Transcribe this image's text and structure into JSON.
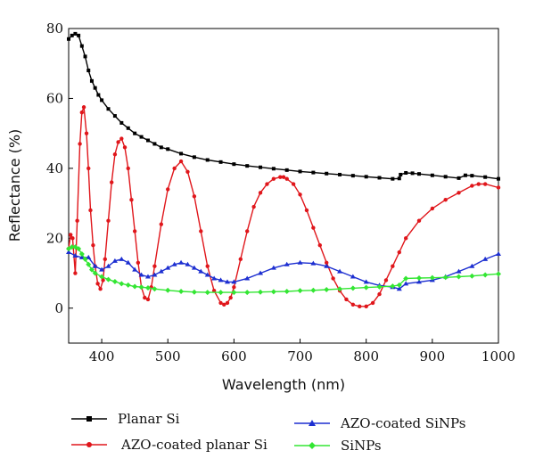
{
  "chart_data": {
    "type": "line",
    "title": "",
    "xlabel": "Wavelength (nm)",
    "ylabel": "Reflectance (%)",
    "xlim": [
      350,
      1000
    ],
    "ylim": [
      -10,
      80
    ],
    "xticks": [
      400,
      500,
      600,
      700,
      800,
      900,
      1000
    ],
    "yticks": [
      0,
      20,
      40,
      60,
      80
    ],
    "xtick_labels": [
      "400",
      "500",
      "600",
      "700",
      "800",
      "900",
      "1000"
    ],
    "ytick_labels": [
      "0",
      "20",
      "40",
      "60",
      "80"
    ],
    "grid": false,
    "legend_position": "bottom",
    "series": [
      {
        "name": "Planar Si",
        "color": "#000000",
        "marker": "square",
        "x": [
          350,
          355,
          360,
          365,
          370,
          375,
          380,
          385,
          390,
          395,
          400,
          410,
          420,
          430,
          440,
          450,
          460,
          470,
          480,
          490,
          500,
          520,
          540,
          560,
          580,
          600,
          620,
          640,
          660,
          680,
          700,
          720,
          740,
          760,
          780,
          800,
          820,
          840,
          850,
          852,
          860,
          870,
          880,
          900,
          920,
          940,
          950,
          960,
          980,
          1000
        ],
        "y": [
          77,
          78,
          78.5,
          78,
          75,
          72,
          68,
          65,
          63,
          61,
          59.5,
          57,
          55,
          53,
          51.5,
          50,
          49,
          48,
          47,
          46,
          45.5,
          44.2,
          43.2,
          42.4,
          41.8,
          41.2,
          40.7,
          40.3,
          39.9,
          39.5,
          39.1,
          38.8,
          38.5,
          38.2,
          37.9,
          37.6,
          37.3,
          37,
          37.1,
          38.2,
          38.7,
          38.6,
          38.4,
          38,
          37.6,
          37.2,
          38,
          37.9,
          37.5,
          37
        ]
      },
      {
        "name": "AZO-coated planar Si",
        "color": "#e0161b",
        "marker": "circle",
        "x": [
          350,
          353,
          356,
          360,
          363,
          367,
          370,
          373,
          377,
          380,
          383,
          387,
          390,
          394,
          398,
          402,
          405,
          410,
          415,
          420,
          425,
          430,
          435,
          440,
          445,
          450,
          455,
          460,
          465,
          470,
          475,
          480,
          490,
          500,
          510,
          520,
          530,
          540,
          550,
          560,
          570,
          580,
          585,
          590,
          595,
          600,
          610,
          620,
          630,
          640,
          650,
          660,
          670,
          675,
          680,
          690,
          700,
          710,
          720,
          730,
          740,
          750,
          760,
          770,
          780,
          790,
          800,
          810,
          820,
          830,
          840,
          850,
          860,
          880,
          900,
          920,
          940,
          960,
          970,
          980,
          1000
        ],
        "y": [
          17,
          21,
          20,
          10,
          25,
          47,
          56,
          57.5,
          50,
          40,
          28,
          18,
          12,
          7,
          5.5,
          8,
          14,
          25,
          36,
          44,
          47.5,
          48.5,
          46,
          40,
          31,
          22,
          13,
          6,
          3,
          2.5,
          6,
          12,
          24,
          34,
          40,
          42,
          39,
          32,
          22,
          12,
          5,
          1.5,
          1,
          1.5,
          3,
          6,
          14,
          22,
          29,
          33,
          35.5,
          37,
          37.5,
          37.5,
          37,
          35.5,
          32.5,
          28,
          23,
          18,
          13,
          8.5,
          5,
          2.5,
          1,
          0.5,
          0.5,
          1.5,
          4,
          8,
          12,
          16,
          20,
          25,
          28.5,
          31,
          33,
          35,
          35.5,
          35.5,
          34.5
        ]
      },
      {
        "name": "AZO-coated SiNPs",
        "color": "#1d2fd1",
        "marker": "triangle",
        "x": [
          350,
          360,
          370,
          380,
          390,
          400,
          410,
          420,
          430,
          440,
          450,
          460,
          470,
          480,
          490,
          500,
          510,
          520,
          530,
          540,
          550,
          560,
          570,
          580,
          590,
          600,
          620,
          640,
          660,
          680,
          700,
          720,
          740,
          760,
          780,
          800,
          820,
          840,
          850,
          860,
          880,
          900,
          920,
          940,
          960,
          980,
          1000
        ],
        "y": [
          16,
          15,
          14.5,
          14.5,
          12,
          11,
          12,
          13.5,
          14,
          13,
          11,
          9.5,
          9,
          9.5,
          10.5,
          11.5,
          12.5,
          13,
          12.5,
          11.5,
          10.5,
          9.5,
          8.5,
          8,
          7.5,
          7.5,
          8.5,
          10,
          11.5,
          12.5,
          13,
          12.8,
          12,
          10.5,
          9,
          7.5,
          6.5,
          6,
          5.5,
          7,
          7.5,
          8,
          9,
          10.5,
          12,
          14,
          15.5
        ]
      },
      {
        "name": "SiNPs",
        "color": "#33e633",
        "marker": "diamond",
        "x": [
          350,
          355,
          360,
          365,
          370,
          375,
          380,
          385,
          390,
          400,
          410,
          420,
          430,
          440,
          450,
          460,
          470,
          480,
          500,
          520,
          540,
          560,
          580,
          600,
          620,
          640,
          660,
          680,
          700,
          720,
          740,
          760,
          780,
          800,
          820,
          840,
          850,
          860,
          880,
          900,
          920,
          940,
          960,
          980,
          1000
        ],
        "y": [
          17,
          17.5,
          17.5,
          17,
          15.5,
          14,
          12.5,
          11,
          10,
          9,
          8.2,
          7.6,
          7,
          6.6,
          6.2,
          6,
          5.8,
          5.5,
          5.1,
          4.8,
          4.6,
          4.5,
          4.5,
          4.5,
          4.5,
          4.6,
          4.7,
          4.8,
          5,
          5.1,
          5.3,
          5.5,
          5.7,
          5.9,
          6.1,
          6.3,
          6.6,
          8.5,
          8.6,
          8.7,
          8.8,
          9,
          9.2,
          9.5,
          9.8
        ]
      }
    ]
  }
}
